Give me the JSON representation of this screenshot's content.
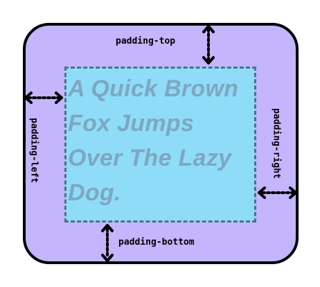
{
  "sample_text": {
    "lines": [
      "A Quick Brown",
      "Fox Jumps",
      "Over The Lazy",
      "Dog."
    ]
  },
  "labels": {
    "top": "padding-top",
    "right": "padding-right",
    "bottom": "padding-bottom",
    "left": "padding-left"
  },
  "colors": {
    "outer_fill": "#c4b5fd",
    "content_fill": "#8fdcf9",
    "content_border": "#536f86",
    "text": "#7da8bf"
  }
}
